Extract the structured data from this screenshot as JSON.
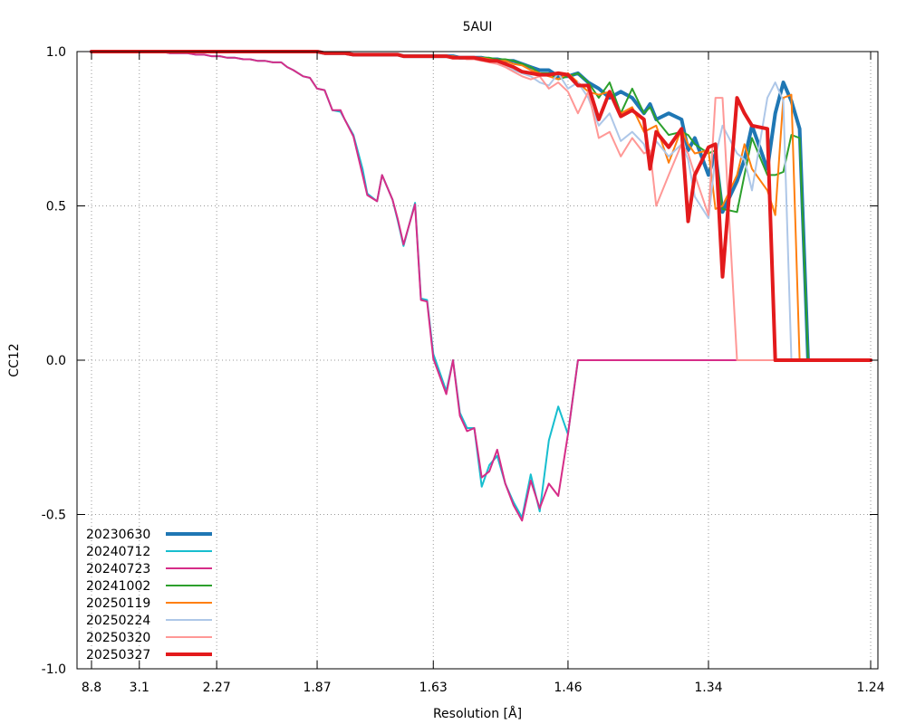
{
  "chart_data": {
    "type": "line",
    "title": "5AUI",
    "xlabel": "Resolution [Å]",
    "ylabel": "CC12",
    "ylim": [
      -1.0,
      1.0
    ],
    "yticks": [
      "1.0",
      "0.5",
      "0.0",
      "-0.5",
      "-1.0"
    ],
    "xticks": [
      "8.8",
      "3.1",
      "2.27",
      "1.87",
      "1.63",
      "1.46",
      "1.34",
      "1.24"
    ],
    "x_scale": "inverse-cube resolution (1/d^3)",
    "x_range_resolution": [
      8.8,
      1.24
    ],
    "grid": true,
    "legend_position": "bottom-left",
    "resolution": [
      8.8,
      5.2,
      4.3,
      3.8,
      3.45,
      3.2,
      3.02,
      2.87,
      2.75,
      2.65,
      2.56,
      2.48,
      2.41,
      2.35,
      2.3,
      2.25,
      2.21,
      2.17,
      2.13,
      2.1,
      2.07,
      2.04,
      2.01,
      1.98,
      1.96,
      1.94,
      1.91,
      1.89,
      1.87,
      1.85,
      1.83,
      1.81,
      1.8,
      1.78,
      1.76,
      1.75,
      1.73,
      1.72,
      1.7,
      1.69,
      1.68,
      1.66,
      1.65,
      1.64,
      1.63,
      1.61,
      1.6,
      1.59,
      1.58,
      1.57,
      1.56,
      1.55,
      1.54,
      1.53,
      1.52,
      1.51,
      1.5,
      1.49,
      1.48,
      1.47,
      1.46,
      1.45,
      1.44,
      1.43,
      1.42,
      1.41,
      1.4,
      1.39,
      1.385,
      1.38,
      1.37,
      1.36,
      1.355,
      1.35,
      1.34,
      1.335,
      1.33,
      1.32,
      1.315,
      1.31,
      1.3,
      1.295,
      1.29,
      1.285,
      1.28,
      1.275,
      1.27,
      1.265,
      1.26,
      1.255,
      1.25,
      1.24
    ],
    "series": [
      {
        "name": "20230630",
        "color": "#1f77b4",
        "width": 4,
        "values": [
          1.0,
          1.0,
          1.0,
          1.0,
          1.0,
          1.0,
          1.0,
          1.0,
          1.0,
          1.0,
          1.0,
          1.0,
          1.0,
          1.0,
          1.0,
          1.0,
          1.0,
          1.0,
          1.0,
          1.0,
          1.0,
          1.0,
          1.0,
          1.0,
          1.0,
          1.0,
          1.0,
          1.0,
          1.0,
          0.995,
          0.995,
          0.995,
          0.995,
          0.99,
          0.99,
          0.99,
          0.99,
          0.99,
          0.99,
          0.99,
          0.985,
          0.985,
          0.985,
          0.985,
          0.985,
          0.985,
          0.985,
          0.98,
          0.98,
          0.98,
          0.98,
          0.975,
          0.975,
          0.97,
          0.97,
          0.96,
          0.95,
          0.94,
          0.94,
          0.92,
          0.92,
          0.93,
          0.9,
          0.88,
          0.85,
          0.87,
          0.85,
          0.8,
          0.83,
          0.78,
          0.8,
          0.78,
          0.68,
          0.72,
          0.6,
          0.67,
          0.48,
          0.58,
          0.65,
          0.76,
          0.62,
          0.8,
          0.9,
          0.84,
          0.75,
          0.0,
          0.0
        ]
      },
      {
        "name": "20240712",
        "color": "#17becf",
        "width": 2,
        "values": [
          1.0,
          1.0,
          1.0,
          1.0,
          1.0,
          1.0,
          1.0,
          1.0,
          1.0,
          0.995,
          0.995,
          0.995,
          0.99,
          0.99,
          0.985,
          0.985,
          0.98,
          0.98,
          0.975,
          0.975,
          0.97,
          0.97,
          0.965,
          0.965,
          0.95,
          0.94,
          0.92,
          0.915,
          0.88,
          0.875,
          0.81,
          0.805,
          0.78,
          0.73,
          0.62,
          0.54,
          0.515,
          0.6,
          0.52,
          0.45,
          0.37,
          0.51,
          0.2,
          0.195,
          0.02,
          -0.1,
          0.0,
          -0.17,
          -0.22,
          -0.22,
          -0.41,
          -0.34,
          -0.31,
          -0.4,
          -0.46,
          -0.51,
          -0.37,
          -0.49,
          -0.26,
          -0.15,
          -0.24,
          0.0,
          0.0
        ]
      },
      {
        "name": "20240723",
        "color": "#d62d88",
        "width": 2,
        "values": [
          1.0,
          1.0,
          1.0,
          1.0,
          1.0,
          1.0,
          1.0,
          1.0,
          1.0,
          0.995,
          0.995,
          0.995,
          0.99,
          0.99,
          0.985,
          0.985,
          0.98,
          0.98,
          0.975,
          0.975,
          0.97,
          0.97,
          0.965,
          0.965,
          0.95,
          0.94,
          0.92,
          0.915,
          0.88,
          0.875,
          0.81,
          0.81,
          0.78,
          0.725,
          0.6,
          0.535,
          0.515,
          0.6,
          0.52,
          0.455,
          0.375,
          0.505,
          0.195,
          0.19,
          0.005,
          -0.11,
          0.0,
          -0.18,
          -0.23,
          -0.22,
          -0.38,
          -0.36,
          -0.29,
          -0.4,
          -0.47,
          -0.52,
          -0.39,
          -0.48,
          -0.4,
          -0.44,
          -0.24,
          0.0,
          0.0
        ]
      },
      {
        "name": "20241002",
        "color": "#2ca02c",
        "width": 2,
        "values": [
          1.0,
          1.0,
          1.0,
          1.0,
          1.0,
          1.0,
          1.0,
          1.0,
          1.0,
          1.0,
          1.0,
          1.0,
          1.0,
          1.0,
          1.0,
          1.0,
          1.0,
          1.0,
          1.0,
          1.0,
          1.0,
          1.0,
          1.0,
          1.0,
          1.0,
          1.0,
          1.0,
          1.0,
          1.0,
          0.995,
          0.995,
          0.995,
          0.995,
          0.99,
          0.99,
          0.99,
          0.99,
          0.99,
          0.99,
          0.99,
          0.985,
          0.985,
          0.985,
          0.985,
          0.985,
          0.985,
          0.985,
          0.98,
          0.98,
          0.98,
          0.98,
          0.98,
          0.975,
          0.975,
          0.97,
          0.96,
          0.95,
          0.93,
          0.93,
          0.91,
          0.92,
          0.93,
          0.9,
          0.85,
          0.9,
          0.8,
          0.88,
          0.8,
          0.82,
          0.78,
          0.73,
          0.74,
          0.73,
          0.7,
          0.67,
          0.68,
          0.49,
          0.48,
          0.6,
          0.72,
          0.6,
          0.6,
          0.61,
          0.73,
          0.72,
          0.0,
          0.0
        ]
      },
      {
        "name": "20250119",
        "color": "#ff7f0e",
        "width": 2,
        "values": [
          1.0,
          1.0,
          1.0,
          1.0,
          1.0,
          1.0,
          1.0,
          1.0,
          1.0,
          1.0,
          1.0,
          1.0,
          1.0,
          1.0,
          1.0,
          1.0,
          1.0,
          1.0,
          1.0,
          1.0,
          1.0,
          1.0,
          1.0,
          1.0,
          1.0,
          1.0,
          1.0,
          1.0,
          1.0,
          0.995,
          0.995,
          0.995,
          0.995,
          0.99,
          0.99,
          0.99,
          0.99,
          0.99,
          0.99,
          0.99,
          0.985,
          0.985,
          0.985,
          0.985,
          0.985,
          0.985,
          0.985,
          0.98,
          0.98,
          0.98,
          0.98,
          0.975,
          0.97,
          0.97,
          0.96,
          0.955,
          0.94,
          0.93,
          0.92,
          0.91,
          0.93,
          0.9,
          0.87,
          0.86,
          0.87,
          0.8,
          0.82,
          0.74,
          0.75,
          0.76,
          0.64,
          0.75,
          0.7,
          0.67,
          0.68,
          0.49,
          0.5,
          0.6,
          0.7,
          0.62,
          0.55,
          0.47,
          0.85,
          0.86,
          0.0,
          0.0
        ]
      },
      {
        "name": "20250224",
        "color": "#aec7e8",
        "width": 2,
        "values": [
          1.0,
          1.0,
          1.0,
          1.0,
          1.0,
          1.0,
          1.0,
          1.0,
          1.0,
          1.0,
          1.0,
          1.0,
          1.0,
          1.0,
          1.0,
          1.0,
          1.0,
          1.0,
          1.0,
          1.0,
          1.0,
          1.0,
          1.0,
          1.0,
          1.0,
          1.0,
          1.0,
          1.0,
          1.0,
          0.995,
          0.995,
          0.995,
          0.995,
          0.99,
          0.99,
          0.99,
          0.99,
          0.99,
          0.99,
          0.99,
          0.985,
          0.985,
          0.985,
          0.985,
          0.985,
          0.985,
          0.98,
          0.98,
          0.975,
          0.975,
          0.97,
          0.97,
          0.96,
          0.95,
          0.94,
          0.93,
          0.92,
          0.9,
          0.89,
          0.93,
          0.88,
          0.9,
          0.85,
          0.76,
          0.8,
          0.71,
          0.74,
          0.7,
          0.64,
          0.71,
          0.66,
          0.7,
          0.65,
          0.53,
          0.46,
          0.66,
          0.76,
          0.67,
          0.65,
          0.55,
          0.85,
          0.9,
          0.84,
          0.0,
          0.0
        ]
      },
      {
        "name": "20250320",
        "color": "#ff9896",
        "width": 2,
        "values": [
          1.0,
          1.0,
          1.0,
          1.0,
          1.0,
          1.0,
          1.0,
          1.0,
          1.0,
          1.0,
          1.0,
          1.0,
          1.0,
          1.0,
          1.0,
          1.0,
          1.0,
          1.0,
          1.0,
          1.0,
          1.0,
          1.0,
          1.0,
          1.0,
          1.0,
          1.0,
          1.0,
          1.0,
          1.0,
          0.995,
          0.995,
          0.995,
          0.995,
          0.99,
          0.99,
          0.99,
          0.99,
          0.99,
          0.99,
          0.99,
          0.985,
          0.985,
          0.985,
          0.985,
          0.985,
          0.985,
          0.98,
          0.98,
          0.975,
          0.975,
          0.97,
          0.965,
          0.96,
          0.95,
          0.935,
          0.92,
          0.91,
          0.92,
          0.88,
          0.9,
          0.87,
          0.8,
          0.87,
          0.72,
          0.74,
          0.66,
          0.72,
          0.67,
          0.68,
          0.5,
          0.6,
          0.7,
          0.67,
          0.6,
          0.47,
          0.85,
          0.85,
          0.0,
          0.0
        ]
      },
      {
        "name": "20250327",
        "color": "#e31a1c",
        "width": 4,
        "values": [
          1.0,
          1.0,
          1.0,
          1.0,
          1.0,
          1.0,
          1.0,
          1.0,
          1.0,
          1.0,
          1.0,
          1.0,
          1.0,
          1.0,
          1.0,
          1.0,
          1.0,
          1.0,
          1.0,
          1.0,
          1.0,
          1.0,
          1.0,
          1.0,
          1.0,
          1.0,
          1.0,
          1.0,
          1.0,
          0.995,
          0.995,
          0.995,
          0.995,
          0.99,
          0.99,
          0.99,
          0.99,
          0.99,
          0.99,
          0.99,
          0.985,
          0.985,
          0.985,
          0.985,
          0.985,
          0.985,
          0.98,
          0.98,
          0.98,
          0.98,
          0.975,
          0.97,
          0.97,
          0.96,
          0.95,
          0.935,
          0.93,
          0.925,
          0.925,
          0.93,
          0.925,
          0.89,
          0.89,
          0.78,
          0.87,
          0.79,
          0.81,
          0.78,
          0.62,
          0.74,
          0.69,
          0.75,
          0.45,
          0.6,
          0.69,
          0.7,
          0.27,
          0.85,
          0.8,
          0.76,
          0.75,
          0.0,
          0.0
        ]
      }
    ]
  }
}
